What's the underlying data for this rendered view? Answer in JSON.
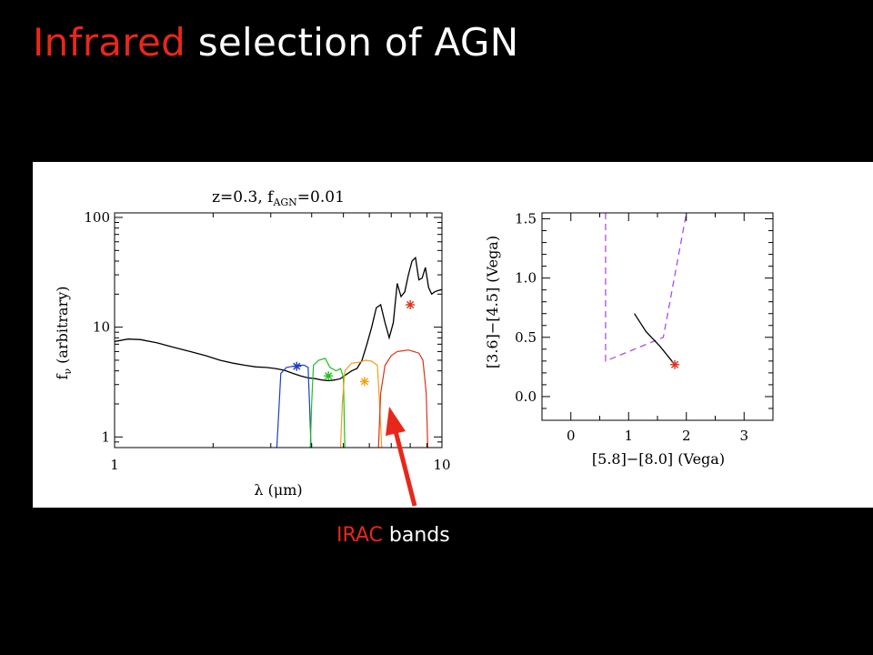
{
  "slide": {
    "title_highlight": "Infrared",
    "title_rest": " selection of AGN",
    "caption_highlight": "IRAC",
    "caption_rest": " bands"
  },
  "colors": {
    "accent": "#e8271b",
    "band1": "#1c3fc4",
    "band2": "#1fbf1f",
    "band3": "#f0a11a",
    "band4": "#e0301c",
    "wedge": "#b04ce0"
  },
  "chart_data": [
    {
      "type": "line",
      "title": "z=0.3,  f_AGN=0.01",
      "title_main": "z=0.3,  f",
      "title_sub": "AGN",
      "title_end": "=0.01",
      "xlabel": "λ (μm)",
      "ylabel": "f_ν (arbitrary)",
      "ylabel_main": "f",
      "ylabel_sub": "ν",
      "ylabel_rest": " (arbitrary)",
      "xscale": "log",
      "yscale": "log",
      "xlim": [
        1,
        10
      ],
      "ylim": [
        0.8,
        110
      ],
      "xticks": [
        {
          "value": 1,
          "label": "1"
        },
        {
          "value": 10,
          "label": "10"
        }
      ],
      "yticks": [
        {
          "value": 1,
          "label": "1"
        },
        {
          "value": 10,
          "label": "10"
        },
        {
          "value": 100,
          "label": "100"
        }
      ],
      "series": [
        {
          "role": "sed",
          "color": "#000000",
          "x": [
            1.0,
            1.1,
            1.2,
            1.35,
            1.5,
            1.7,
            1.9,
            2.1,
            2.3,
            2.5,
            2.7,
            2.9,
            3.1,
            3.3,
            3.5,
            3.7,
            3.9,
            4.1,
            4.3,
            4.5,
            4.7,
            4.9,
            5.1,
            5.3,
            5.5,
            5.7,
            5.9,
            6.1,
            6.3,
            6.5,
            6.7,
            6.9,
            7.1,
            7.3,
            7.5,
            7.7,
            7.9,
            8.1,
            8.3,
            8.5,
            8.7,
            8.9,
            9.1,
            9.3,
            9.5,
            9.7,
            10.0
          ],
          "y": [
            7.4,
            7.8,
            7.7,
            7.2,
            6.6,
            6.0,
            5.5,
            5.0,
            4.7,
            4.5,
            4.35,
            4.3,
            4.2,
            4.05,
            3.8,
            3.6,
            3.45,
            3.4,
            3.3,
            3.25,
            3.3,
            3.4,
            3.7,
            4.0,
            4.2,
            5.0,
            7.0,
            10.0,
            15.0,
            16.0,
            11.0,
            8.0,
            11.0,
            25.0,
            19.0,
            21.0,
            30.0,
            40.0,
            43.0,
            27.0,
            28.0,
            35.0,
            23.0,
            20.0,
            21.0,
            21.5,
            22.0
          ]
        },
        {
          "role": "band",
          "color": "#1c3fc4",
          "x": [
            3.13,
            3.17,
            3.22,
            3.35,
            3.5,
            3.65,
            3.8,
            3.9,
            3.94,
            3.98
          ],
          "y": [
            0.8,
            1.6,
            3.8,
            4.3,
            4.4,
            4.5,
            4.5,
            4.3,
            2.0,
            0.8
          ]
        },
        {
          "role": "band",
          "color": "#1fbf1f",
          "x": [
            3.96,
            4.0,
            4.05,
            4.2,
            4.4,
            4.55,
            4.75,
            4.9,
            5.0,
            5.05
          ],
          "y": [
            0.8,
            2.0,
            4.5,
            5.0,
            5.2,
            4.3,
            4.0,
            4.2,
            3.5,
            0.8
          ]
        },
        {
          "role": "band",
          "color": "#f0a11a",
          "x": [
            4.9,
            4.96,
            5.05,
            5.3,
            5.6,
            5.85,
            6.1,
            6.35,
            6.45,
            6.55
          ],
          "y": [
            0.8,
            2.0,
            4.0,
            4.7,
            4.8,
            5.0,
            4.9,
            4.5,
            2.0,
            0.8
          ]
        },
        {
          "role": "band",
          "color": "#e0301c",
          "x": [
            6.4,
            6.5,
            6.7,
            7.0,
            7.3,
            7.6,
            7.9,
            8.2,
            8.5,
            8.75,
            8.95,
            9.05
          ],
          "y": [
            0.8,
            2.5,
            4.5,
            5.5,
            6.0,
            6.1,
            6.2,
            6.0,
            5.8,
            5.0,
            2.5,
            0.8
          ]
        }
      ],
      "points": [
        {
          "x": 3.6,
          "y": 4.4,
          "color": "#1c3fc4"
        },
        {
          "x": 4.5,
          "y": 3.6,
          "color": "#1fbf1f"
        },
        {
          "x": 5.8,
          "y": 3.2,
          "color": "#f0a11a"
        },
        {
          "x": 8.0,
          "y": 16.0,
          "color": "#e0301c"
        }
      ]
    },
    {
      "type": "line",
      "xlabel": "[5.8]−[8.0] (Vega)",
      "ylabel": "[3.6]−[4.5] (Vega)",
      "xlim": [
        -0.5,
        3.5
      ],
      "ylim": [
        -0.2,
        1.55
      ],
      "xticks": [
        {
          "value": 0,
          "label": "0"
        },
        {
          "value": 1,
          "label": "1"
        },
        {
          "value": 2,
          "label": "2"
        },
        {
          "value": 3,
          "label": "3"
        }
      ],
      "yticks": [
        {
          "value": 0.0,
          "label": "0.0"
        },
        {
          "value": 0.5,
          "label": "0.5"
        },
        {
          "value": 1.0,
          "label": "1.0"
        },
        {
          "value": 1.5,
          "label": "1.5"
        }
      ],
      "series": [
        {
          "role": "wedge",
          "color": "#b04ce0",
          "dash": true,
          "x": [
            0.6,
            0.6,
            1.6,
            2.0
          ],
          "y": [
            1.55,
            0.3,
            0.5,
            1.55
          ]
        },
        {
          "role": "track",
          "color": "#000000",
          "x": [
            1.1,
            1.3,
            1.55,
            1.8
          ],
          "y": [
            0.7,
            0.55,
            0.42,
            0.27
          ]
        }
      ],
      "points": [
        {
          "x": 1.8,
          "y": 0.27,
          "color": "#e0301c"
        }
      ]
    }
  ]
}
